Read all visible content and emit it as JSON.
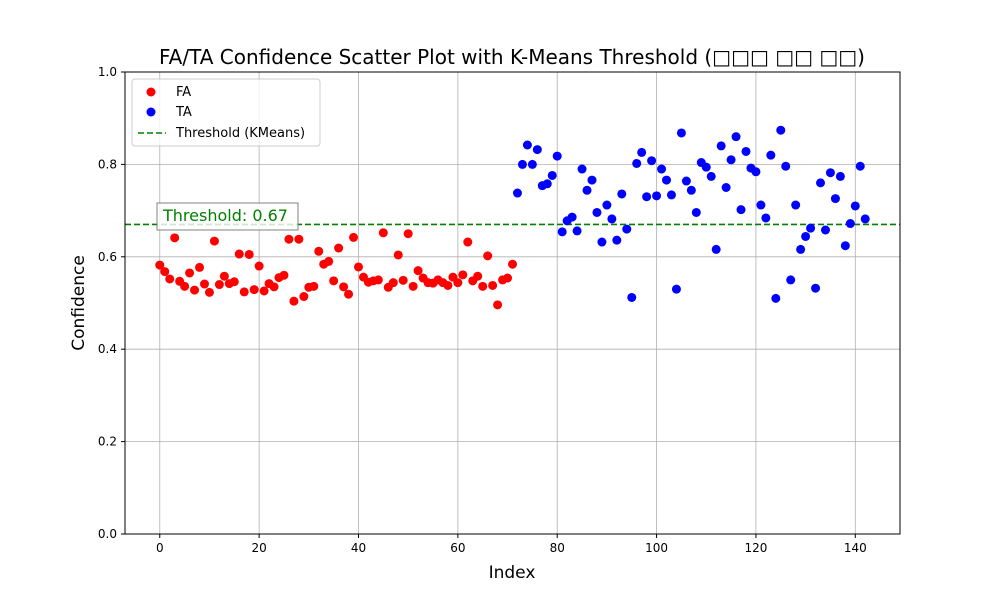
{
  "chart_data": {
    "type": "scatter",
    "title": "FA/TA Confidence Scatter Plot with K-Means Threshold (□□□ □□ □□)",
    "xlabel": "Index",
    "ylabel": "Confidence",
    "xlim": [
      -7,
      149
    ],
    "ylim": [
      0.0,
      1.0
    ],
    "xticks": [
      0,
      20,
      40,
      60,
      80,
      100,
      120,
      140
    ],
    "yticks": [
      0.0,
      0.2,
      0.4,
      0.6,
      0.8,
      1.0
    ],
    "grid": true,
    "legend_placement": "top-left",
    "series": [
      {
        "name": "FA",
        "color": "#ff0000",
        "x": [
          0,
          1,
          2,
          3,
          4,
          5,
          6,
          7,
          8,
          9,
          10,
          11,
          12,
          13,
          14,
          15,
          16,
          17,
          18,
          19,
          20,
          21,
          22,
          23,
          24,
          25,
          26,
          27,
          28,
          29,
          30,
          31,
          32,
          33,
          34,
          35,
          36,
          37,
          38,
          39,
          40,
          41,
          42,
          43,
          44,
          45,
          46,
          47,
          48,
          49,
          50,
          51,
          52,
          53,
          54,
          55,
          56,
          57,
          58,
          59,
          60,
          61,
          62,
          63,
          64,
          65,
          66,
          67,
          68,
          69,
          70,
          71
        ],
        "y": [
          0.582,
          0.568,
          0.552,
          0.641,
          0.547,
          0.536,
          0.565,
          0.528,
          0.577,
          0.541,
          0.523,
          0.634,
          0.54,
          0.558,
          0.542,
          0.546,
          0.606,
          0.524,
          0.605,
          0.529,
          0.58,
          0.526,
          0.542,
          0.535,
          0.555,
          0.56,
          0.638,
          0.504,
          0.638,
          0.514,
          0.534,
          0.536,
          0.612,
          0.584,
          0.59,
          0.548,
          0.619,
          0.535,
          0.519,
          0.642,
          0.578,
          0.556,
          0.545,
          0.548,
          0.55,
          0.652,
          0.534,
          0.544,
          0.604,
          0.549,
          0.65,
          0.536,
          0.57,
          0.554,
          0.544,
          0.543,
          0.55,
          0.544,
          0.538,
          0.556,
          0.544,
          0.561,
          0.632,
          0.548,
          0.558,
          0.536,
          0.602,
          0.538,
          0.496,
          0.55,
          0.554,
          0.584
        ]
      },
      {
        "name": "TA",
        "color": "#0000ff",
        "x": [
          72,
          73,
          74,
          75,
          76,
          77,
          78,
          79,
          80,
          81,
          82,
          83,
          84,
          85,
          86,
          87,
          88,
          89,
          90,
          91,
          92,
          93,
          94,
          95,
          96,
          97,
          98,
          99,
          100,
          101,
          102,
          103,
          104,
          105,
          106,
          107,
          108,
          109,
          110,
          111,
          112,
          113,
          114,
          115,
          116,
          117,
          118,
          119,
          120,
          121,
          122,
          123,
          124,
          125,
          126,
          127,
          128,
          129,
          130,
          131,
          132,
          133,
          134,
          135,
          136,
          137,
          138,
          139,
          140,
          141,
          142
        ],
        "y": [
          0.738,
          0.8,
          0.842,
          0.8,
          0.832,
          0.754,
          0.758,
          0.776,
          0.818,
          0.654,
          0.678,
          0.686,
          0.656,
          0.79,
          0.744,
          0.766,
          0.696,
          0.632,
          0.712,
          0.682,
          0.636,
          0.736,
          0.66,
          0.512,
          0.802,
          0.826,
          0.73,
          0.808,
          0.732,
          0.79,
          0.766,
          0.734,
          0.53,
          0.868,
          0.764,
          0.744,
          0.696,
          0.804,
          0.794,
          0.774,
          0.616,
          0.84,
          0.75,
          0.81,
          0.86,
          0.702,
          0.828,
          0.792,
          0.784,
          0.712,
          0.684,
          0.82,
          0.51,
          0.874,
          0.796,
          0.55,
          0.712,
          0.616,
          0.644,
          0.662,
          0.532,
          0.76,
          0.658,
          0.782,
          0.726,
          0.774,
          0.624,
          0.672,
          0.71,
          0.796,
          0.682
        ]
      }
    ],
    "threshold": {
      "name": "Threshold (KMeans)",
      "value": 0.67,
      "color": "#008000",
      "annotation": "Threshold: 0.67"
    }
  }
}
